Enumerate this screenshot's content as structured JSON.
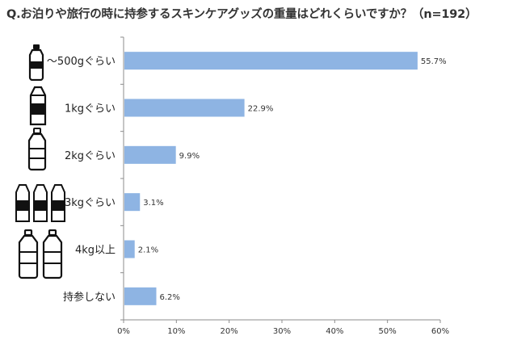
{
  "title": "Q.お泊りや旅行の時に持参するスキンケアグッズの重量はどれくらいですか？（n=192）",
  "chart_data": {
    "type": "bar",
    "orientation": "horizontal",
    "title": "Q.お泊りや旅行の時に持参するスキンケアグッズの重量はどれくらいですか？（n=192）",
    "categories": [
      "～500gぐらい",
      "1kgぐらい",
      "2kgぐらい",
      "3kgぐらい",
      "4kg以上",
      "持参しない"
    ],
    "values": [
      55.7,
      22.9,
      9.9,
      3.1,
      2.1,
      6.2
    ],
    "value_labels": [
      "55.7%",
      "22.9%",
      "9.9%",
      "3.1%",
      "2.1%",
      "6.2%"
    ],
    "xlim": [
      0,
      60
    ],
    "xticks": [
      "0%",
      "10%",
      "20%",
      "30%",
      "40%",
      "50%",
      "60%"
    ],
    "grid": false,
    "bar_color": "#8eb4e3",
    "icons": [
      "small-bottle-icon",
      "milk-carton-icon",
      "large-bottle-icon",
      "three-milk-cartons-icon",
      "two-large-bottles-icon",
      "none"
    ]
  }
}
